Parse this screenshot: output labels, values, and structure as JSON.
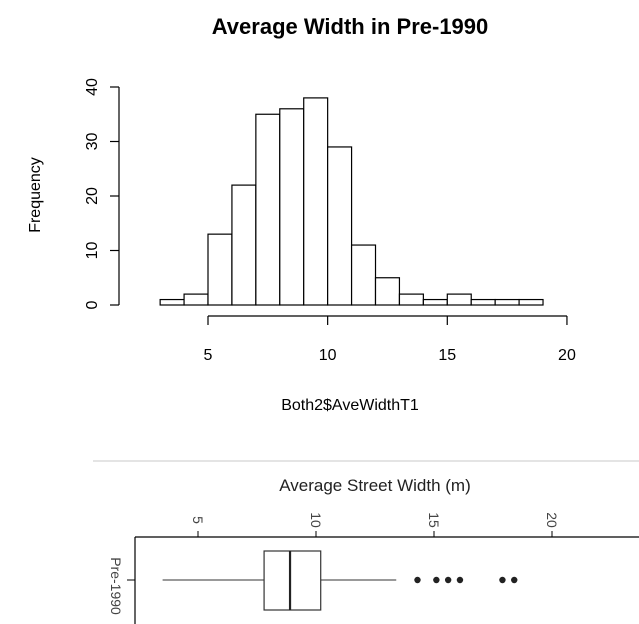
{
  "chart_data": [
    {
      "type": "histogram",
      "title": "Average Width in Pre-1990",
      "xlabel": "Both2$AveWidthT1",
      "ylabel": "Frequency",
      "xlim": [
        3,
        19
      ],
      "ylim": [
        0,
        40
      ],
      "x_ticks": [
        5,
        10,
        15,
        20
      ],
      "y_ticks": [
        0,
        10,
        20,
        30,
        40
      ],
      "bins": [
        {
          "from": 3,
          "to": 4,
          "count": 1
        },
        {
          "from": 4,
          "to": 5,
          "count": 2
        },
        {
          "from": 5,
          "to": 6,
          "count": 13
        },
        {
          "from": 6,
          "to": 7,
          "count": 22
        },
        {
          "from": 7,
          "to": 8,
          "count": 35
        },
        {
          "from": 8,
          "to": 9,
          "count": 36
        },
        {
          "from": 9,
          "to": 10,
          "count": 38
        },
        {
          "from": 10,
          "to": 11,
          "count": 29
        },
        {
          "from": 11,
          "to": 12,
          "count": 11
        },
        {
          "from": 12,
          "to": 13,
          "count": 5
        },
        {
          "from": 13,
          "to": 14,
          "count": 2
        },
        {
          "from": 14,
          "to": 15,
          "count": 1
        },
        {
          "from": 15,
          "to": 16,
          "count": 2
        },
        {
          "from": 16,
          "to": 17,
          "count": 1
        },
        {
          "from": 17,
          "to": 18,
          "count": 1
        },
        {
          "from": 18,
          "to": 19,
          "count": 1
        }
      ],
      "grid": false
    },
    {
      "type": "boxplot",
      "xlabel": "Average Street Width (m)",
      "x_ticks": [
        5,
        10,
        15,
        20
      ],
      "category": "Pre-1990",
      "whisker_low": 3.5,
      "q1": 7.8,
      "median": 8.9,
      "q3": 10.2,
      "whisker_high": 13.4,
      "outliers": [
        14.3,
        15.1,
        15.6,
        16.1,
        17.9,
        18.4
      ]
    }
  ]
}
